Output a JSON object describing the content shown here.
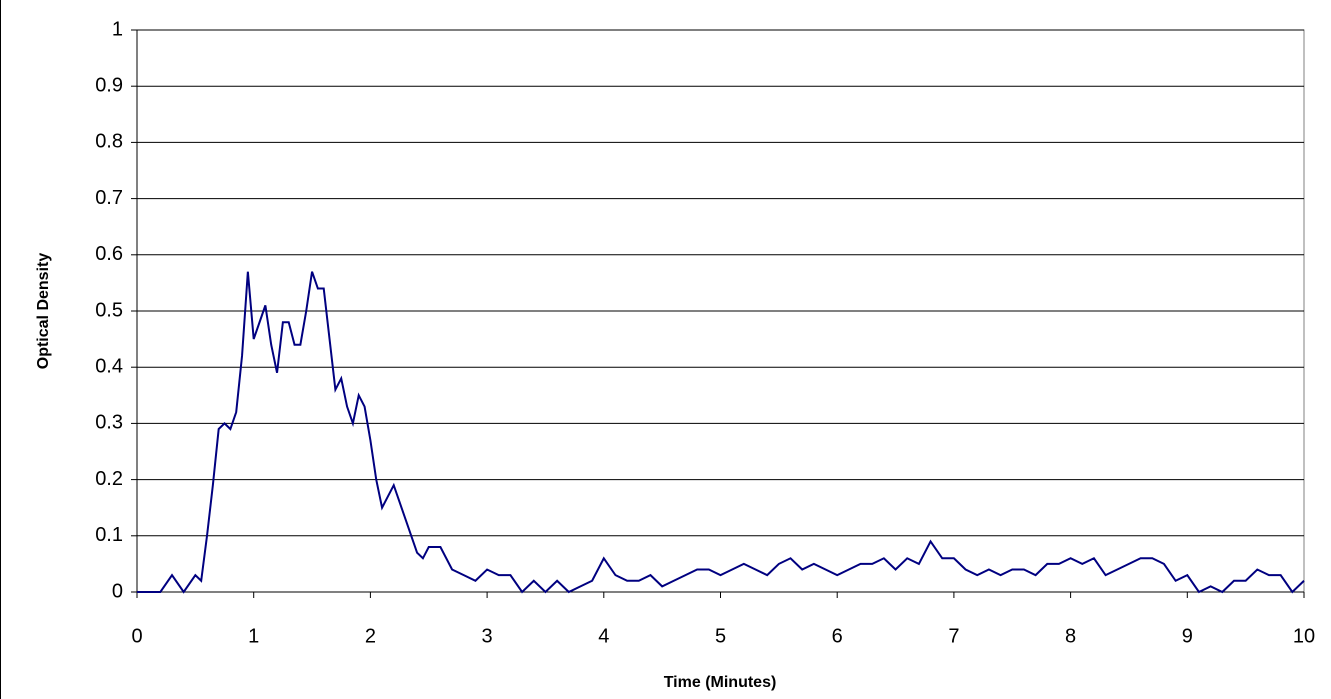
{
  "chart_data": {
    "type": "line",
    "x_label": "Time (Minutes)",
    "y_label": "Optical Density",
    "x": [
      0,
      0.1,
      0.2,
      0.3,
      0.4,
      0.5,
      0.55,
      0.6,
      0.65,
      0.7,
      0.75,
      0.8,
      0.85,
      0.9,
      0.95,
      1.0,
      1.05,
      1.1,
      1.15,
      1.2,
      1.25,
      1.3,
      1.35,
      1.4,
      1.45,
      1.5,
      1.55,
      1.6,
      1.65,
      1.7,
      1.75,
      1.8,
      1.85,
      1.9,
      1.95,
      2.0,
      2.05,
      2.1,
      2.15,
      2.2,
      2.25,
      2.3,
      2.35,
      2.4,
      2.45,
      2.5,
      2.6,
      2.7,
      2.8,
      2.9,
      3.0,
      3.1,
      3.2,
      3.3,
      3.4,
      3.5,
      3.6,
      3.7,
      3.8,
      3.9,
      4.0,
      4.1,
      4.2,
      4.3,
      4.4,
      4.5,
      4.6,
      4.7,
      4.8,
      4.9,
      5.0,
      5.1,
      5.2,
      5.3,
      5.4,
      5.5,
      5.6,
      5.7,
      5.8,
      5.9,
      6.0,
      6.1,
      6.2,
      6.3,
      6.4,
      6.5,
      6.6,
      6.7,
      6.8,
      6.9,
      7.0,
      7.1,
      7.2,
      7.3,
      7.4,
      7.5,
      7.6,
      7.7,
      7.8,
      7.9,
      8.0,
      8.1,
      8.2,
      8.3,
      8.4,
      8.5,
      8.6,
      8.7,
      8.8,
      8.9,
      9.0,
      9.1,
      9.2,
      9.3,
      9.4,
      9.5,
      9.6,
      9.7,
      9.8,
      9.9,
      10
    ],
    "series": [
      {
        "color": "#000080",
        "values": [
          0,
          0,
          0,
          0.03,
          0,
          0.03,
          0.02,
          0.1,
          0.19,
          0.29,
          0.3,
          0.29,
          0.32,
          0.42,
          0.57,
          0.45,
          0.48,
          0.51,
          0.44,
          0.39,
          0.48,
          0.48,
          0.44,
          0.44,
          0.5,
          0.57,
          0.54,
          0.54,
          0.45,
          0.36,
          0.38,
          0.33,
          0.3,
          0.35,
          0.33,
          0.27,
          0.2,
          0.15,
          0.17,
          0.19,
          0.16,
          0.13,
          0.1,
          0.07,
          0.06,
          0.08,
          0.08,
          0.04,
          0.03,
          0.02,
          0.04,
          0.03,
          0.03,
          0,
          0.02,
          0,
          0.02,
          0,
          0.01,
          0.02,
          0.06,
          0.03,
          0.02,
          0.02,
          0.03,
          0.01,
          0.02,
          0.03,
          0.04,
          0.04,
          0.03,
          0.04,
          0.05,
          0.04,
          0.03,
          0.05,
          0.06,
          0.04,
          0.05,
          0.04,
          0.03,
          0.04,
          0.05,
          0.05,
          0.06,
          0.04,
          0.06,
          0.05,
          0.09,
          0.06,
          0.06,
          0.04,
          0.03,
          0.04,
          0.03,
          0.04,
          0.04,
          0.03,
          0.05,
          0.05,
          0.06,
          0.05,
          0.06,
          0.03,
          0.04,
          0.05,
          0.06,
          0.06,
          0.05,
          0.02,
          0.03,
          0,
          0.01,
          0,
          0.02,
          0.02,
          0.04,
          0.03,
          0.03,
          0,
          0.02
        ]
      }
    ],
    "xlim": [
      0,
      10
    ],
    "xticks": [
      0,
      1,
      2,
      3,
      4,
      5,
      6,
      7,
      8,
      9,
      10
    ],
    "ylim": [
      0,
      1
    ],
    "yticks": [
      0,
      0.1,
      0.2,
      0.3,
      0.4,
      0.5,
      0.6,
      0.7,
      0.8,
      0.9,
      1
    ],
    "grid": true
  }
}
